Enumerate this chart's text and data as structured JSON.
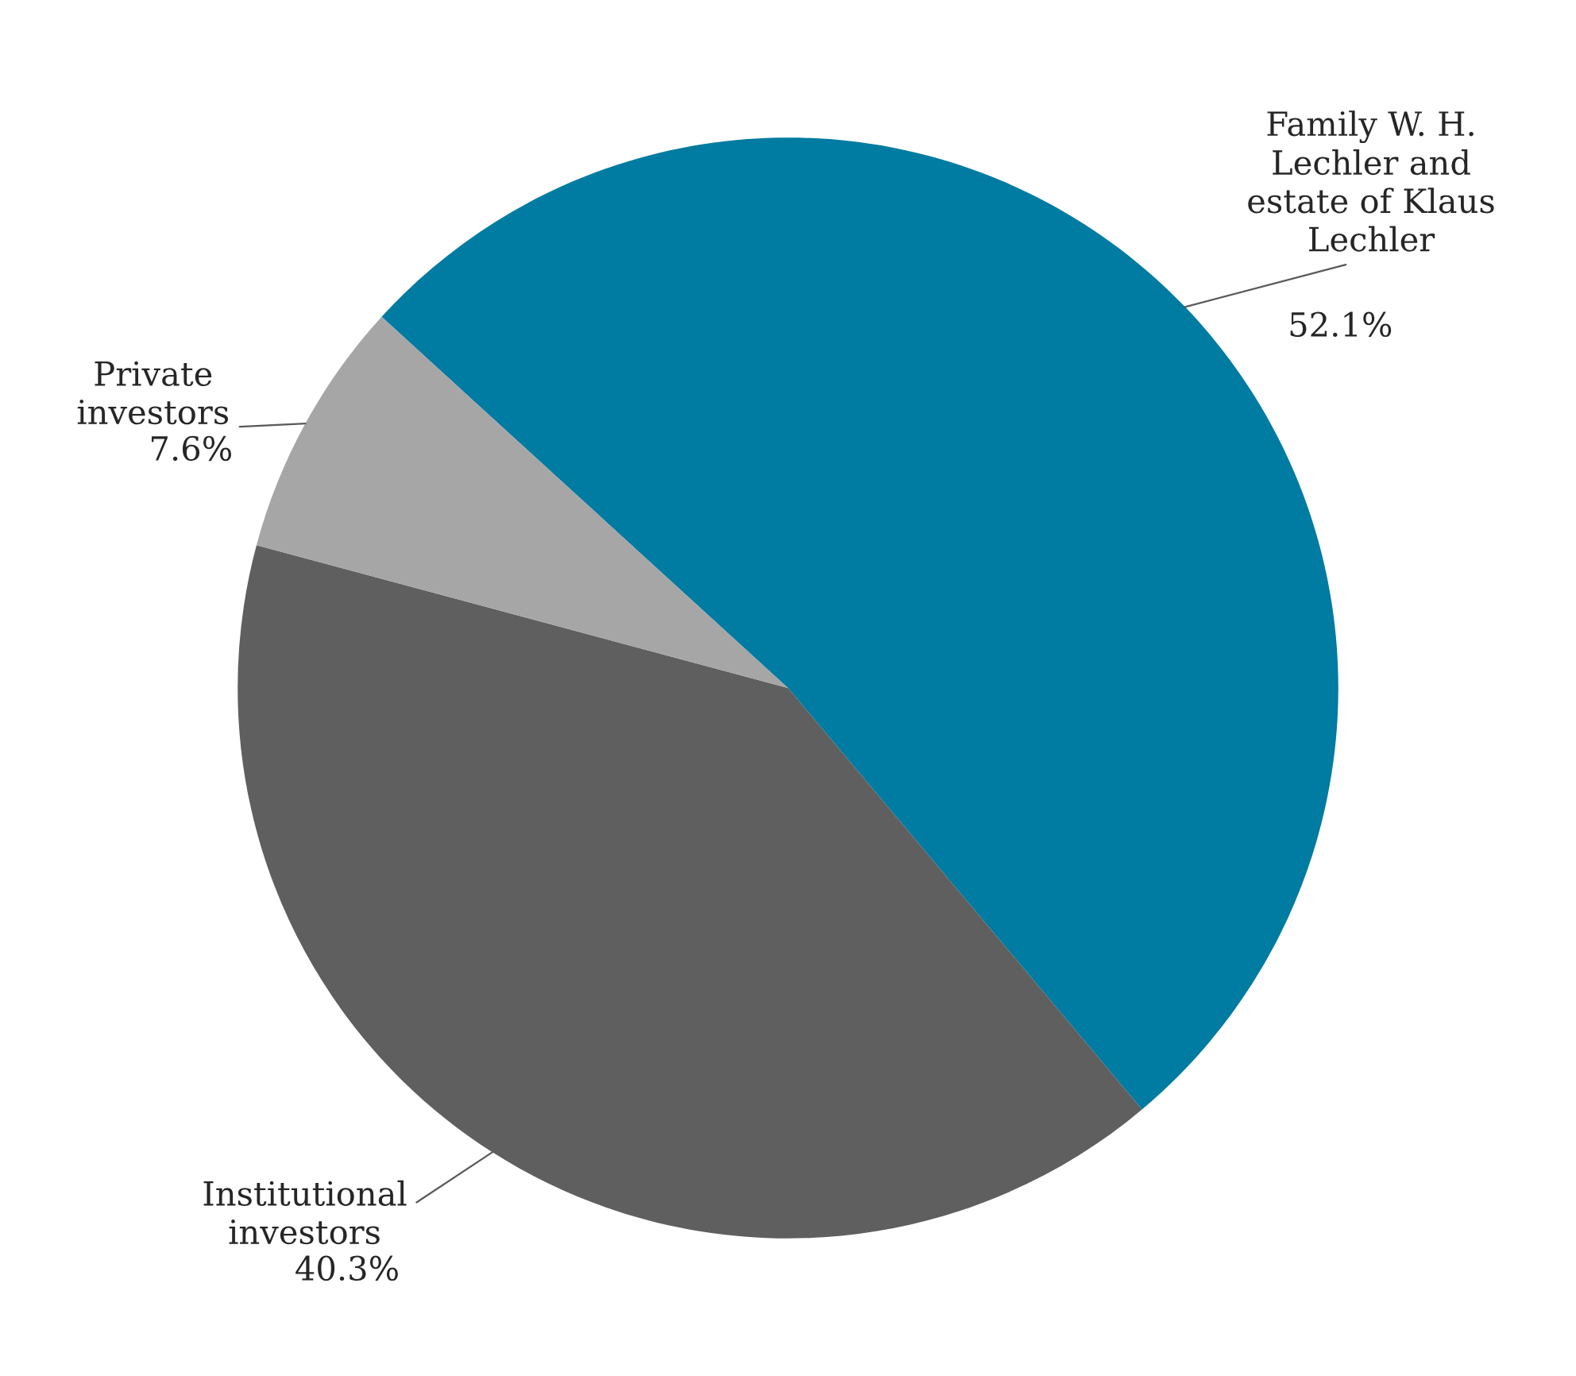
{
  "chart_data": {
    "type": "pie",
    "categories": [
      "Family W. H.\nLechler and\nestate of Klaus\nLechler",
      "Institutional\ninvestors",
      "Private\ninvestors"
    ],
    "values": [
      52.1,
      40.3,
      7.6
    ],
    "value_labels": [
      "52.1%",
      "40.3%",
      "7.6%"
    ],
    "colors": [
      "#007ba1",
      "#5f5f5f",
      "#a6a6a6"
    ],
    "legend": false
  }
}
